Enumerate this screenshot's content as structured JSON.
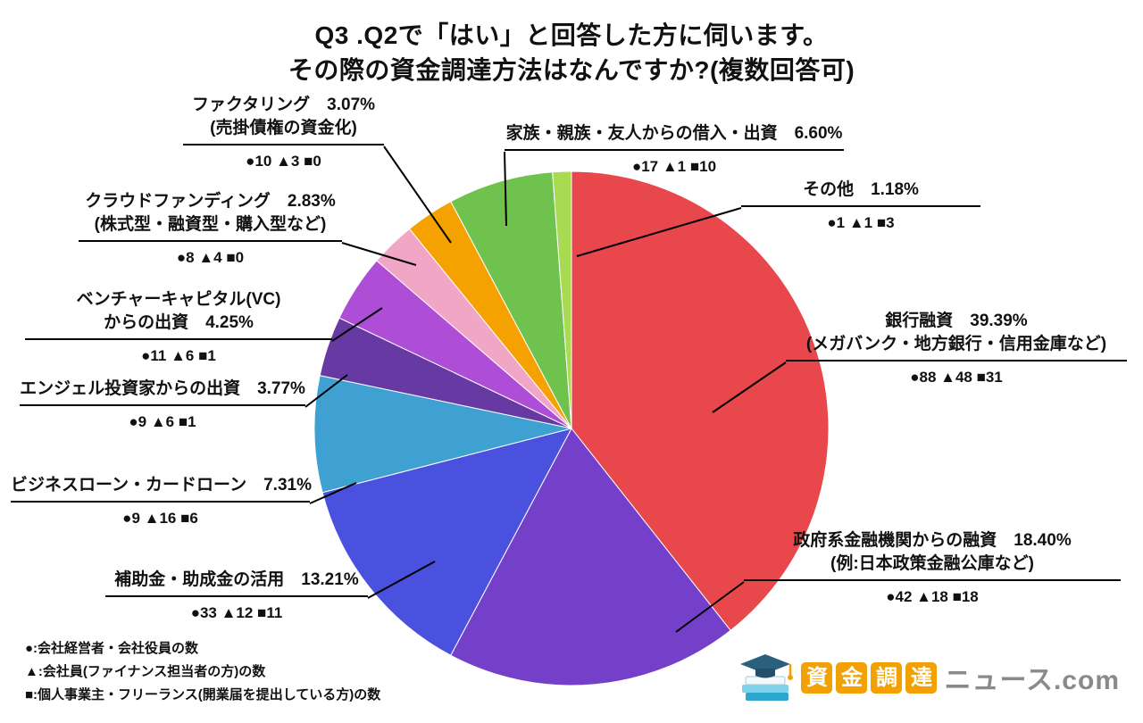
{
  "title": {
    "line1": "Q3 .Q2で「はい」と回答した方に伺います。",
    "line2": "その際の資金調達方法はなんですか?(複数回答可)"
  },
  "chart_data": {
    "type": "pie",
    "title": "Q3 .Q2で「はい」と回答した方に伺います。その際の資金調達方法はなんですか?(複数回答可)",
    "unit": "%",
    "direction": "clockwise",
    "start_angle_deg": 0,
    "slices": [
      {
        "label": "銀行融資",
        "sublabel": "(メガバンク・地方銀行・信用金庫など)",
        "value": 39.39,
        "color": "#E8484B",
        "lines": [
          "銀行融資　39.39%",
          "(メガバンク・地方銀行・信用金庫など)"
        ],
        "counts_text": "●88 ▲48 ■31",
        "counts": {
          "circle": 88,
          "triangle": 48,
          "square": 31
        }
      },
      {
        "label": "政府系金融機関からの融資",
        "sublabel": "(例:日本政策金融公庫など)",
        "value": 18.4,
        "color": "#7440C9",
        "lines": [
          "政府系金融機関からの融資　18.40%",
          "(例:日本政策金融公庫など)"
        ],
        "counts_text": "●42 ▲18 ■18",
        "counts": {
          "circle": 42,
          "triangle": 18,
          "square": 18
        }
      },
      {
        "label": "補助金・助成金の活用",
        "value": 13.21,
        "color": "#4A51DE",
        "lines": [
          "補助金・助成金の活用　13.21%"
        ],
        "counts_text": "●33 ▲12 ■11",
        "counts": {
          "circle": 33,
          "triangle": 12,
          "square": 11
        }
      },
      {
        "label": "ビジネスローン・カードローン",
        "value": 7.31,
        "color": "#3FA0D2",
        "lines": [
          "ビジネスローン・カードローン　7.31%"
        ],
        "counts_text": "●9 ▲16 ■6",
        "counts": {
          "circle": 9,
          "triangle": 16,
          "square": 6
        }
      },
      {
        "label": "エンジェル投資家からの出資",
        "value": 3.77,
        "color": "#6639A3",
        "lines": [
          "エンジェル投資家からの出資　3.77%"
        ],
        "counts_text": "●9 ▲6 ■1",
        "counts": {
          "circle": 9,
          "triangle": 6,
          "square": 1
        }
      },
      {
        "label": "ベンチャーキャピタル(VC)からの出資",
        "value": 4.25,
        "color": "#AE4ED6",
        "lines": [
          "ベンチャーキャピタル(VC)",
          "からの出資　4.25%"
        ],
        "counts_text": "●11 ▲6 ■1",
        "counts": {
          "circle": 11,
          "triangle": 6,
          "square": 1
        }
      },
      {
        "label": "クラウドファンディング",
        "sublabel": "(株式型・融資型・購入型など)",
        "value": 2.83,
        "color": "#F2A6C6",
        "lines": [
          "クラウドファンディング　2.83%",
          "(株式型・融資型・購入型など)"
        ],
        "counts_text": "●8 ▲4 ■0",
        "counts": {
          "circle": 8,
          "triangle": 4,
          "square": 0
        }
      },
      {
        "label": "ファクタリング",
        "sublabel": "(売掛債権の資金化)",
        "value": 3.07,
        "color": "#F5A201",
        "lines": [
          "ファクタリング　3.07%",
          "(売掛債権の資金化)"
        ],
        "counts_text": "●10 ▲3 ■0",
        "counts": {
          "circle": 10,
          "triangle": 3,
          "square": 0
        }
      },
      {
        "label": "家族・親族・友人からの借入・出資",
        "value": 6.6,
        "color": "#6EC24D",
        "lines": [
          "家族・親族・友人からの借入・出資　6.60%"
        ],
        "counts_text": "●17 ▲1 ■10",
        "counts": {
          "circle": 17,
          "triangle": 1,
          "square": 10
        }
      },
      {
        "label": "その他",
        "value": 1.18,
        "color": "#A8DA52",
        "lines": [
          "その他　1.18%"
        ],
        "counts_text": "●1 ▲1 ■3",
        "counts": {
          "circle": 1,
          "triangle": 1,
          "square": 3
        }
      }
    ]
  },
  "legend": {
    "lines": [
      "●:会社経営者・会社役員の数",
      "▲:会社員(ファイナンス担当者の方)の数",
      "■:個人事業主・フリーランス(開業届を提出している方)の数"
    ]
  },
  "logo": {
    "boxes": [
      "資",
      "金",
      "調",
      "達"
    ],
    "suffix": "ニュース.com",
    "box_color": "#F2A105",
    "suffix_color": "#8A8A8A",
    "icon": "books-graduation-cap-icon"
  }
}
